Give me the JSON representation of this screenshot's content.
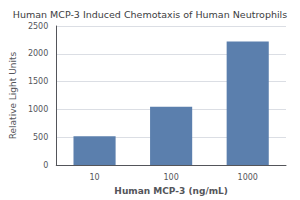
{
  "chart_data": {
    "type": "bar",
    "title": "Human MCP-3 Induced Chemotaxis of Human Neutrophils",
    "xlabel": "Human MCP-3 (ng/mL)",
    "ylabel": "Relative Light Units",
    "categories": [
      "10",
      "100",
      "1000"
    ],
    "values": [
      520,
      1050,
      2220
    ],
    "color": "#5b7fad",
    "ylim": [
      0,
      2500
    ],
    "yticks": [
      0,
      500,
      1000,
      1500,
      2000,
      2500
    ],
    "grid": true
  }
}
